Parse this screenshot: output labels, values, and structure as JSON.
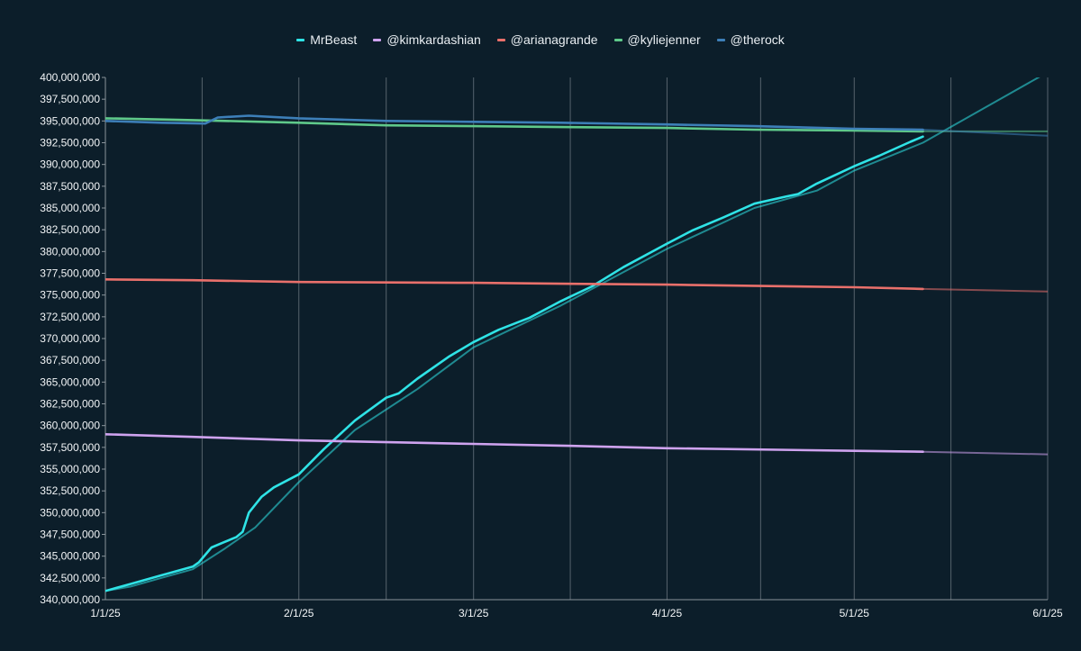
{
  "chart_data": {
    "type": "line",
    "title": "",
    "xlabel": "",
    "ylabel": "",
    "x_ticks": [
      "1/1/25",
      "2/1/25",
      "3/1/25",
      "4/1/25",
      "5/1/25",
      "6/1/25"
    ],
    "x_range": [
      "2025-01-01",
      "2025-06-01"
    ],
    "y_range": [
      340000000,
      400000000
    ],
    "y_ticks": [
      "340,000,000",
      "342,500,000",
      "345,000,000",
      "347,500,000",
      "350,000,000",
      "352,500,000",
      "355,000,000",
      "357,500,000",
      "360,000,000",
      "362,500,000",
      "365,000,000",
      "367,500,000",
      "370,000,000",
      "372,500,000",
      "375,000,000",
      "377,500,000",
      "380,000,000",
      "382,500,000",
      "385,000,000",
      "387,500,000",
      "390,000,000",
      "392,500,000",
      "395,000,000",
      "397,500,000",
      "400,000,000"
    ],
    "grid": "vertical gridlines at each date tick and between ticks",
    "legend": {
      "position": "top-center"
    },
    "series": [
      {
        "name": "MrBeast",
        "color": "#2fe3e6",
        "points": [
          [
            "2025-01-01",
            341000000
          ],
          [
            "2025-01-05",
            341800000
          ],
          [
            "2025-01-10",
            342800000
          ],
          [
            "2025-01-15",
            343800000
          ],
          [
            "2025-01-16",
            344300000
          ],
          [
            "2025-01-18",
            346000000
          ],
          [
            "2025-01-20",
            346600000
          ],
          [
            "2025-01-22",
            347200000
          ],
          [
            "2025-01-23",
            347800000
          ],
          [
            "2025-01-24",
            350000000
          ],
          [
            "2025-01-26",
            351800000
          ],
          [
            "2025-01-28",
            352900000
          ],
          [
            "2025-02-01",
            354400000
          ],
          [
            "2025-02-05",
            357300000
          ],
          [
            "2025-02-10",
            360600000
          ],
          [
            "2025-02-15",
            363200000
          ],
          [
            "2025-02-17",
            363700000
          ],
          [
            "2025-02-20",
            365400000
          ],
          [
            "2025-02-25",
            367900000
          ],
          [
            "2025-03-01",
            369600000
          ],
          [
            "2025-03-05",
            371000000
          ],
          [
            "2025-03-10",
            372400000
          ],
          [
            "2025-03-15",
            374300000
          ],
          [
            "2025-03-20",
            376000000
          ],
          [
            "2025-03-25",
            378200000
          ],
          [
            "2025-04-01",
            380900000
          ],
          [
            "2025-04-05",
            382400000
          ],
          [
            "2025-04-10",
            383900000
          ],
          [
            "2025-04-15",
            385500000
          ],
          [
            "2025-04-20",
            386300000
          ],
          [
            "2025-04-22",
            386600000
          ],
          [
            "2025-04-25",
            387800000
          ],
          [
            "2025-05-01",
            389800000
          ],
          [
            "2025-05-05",
            391000000
          ],
          [
            "2025-05-10",
            392600000
          ],
          [
            "2025-05-12",
            393200000
          ]
        ],
        "trend": [
          [
            "2025-01-01",
            341000000
          ],
          [
            "2025-01-05",
            341500000
          ],
          [
            "2025-01-10",
            342500000
          ],
          [
            "2025-01-15",
            343500000
          ],
          [
            "2025-01-20",
            345800000
          ],
          [
            "2025-01-25",
            348300000
          ],
          [
            "2025-02-01",
            353500000
          ],
          [
            "2025-02-10",
            359500000
          ],
          [
            "2025-02-20",
            364200000
          ],
          [
            "2025-03-01",
            369000000
          ],
          [
            "2025-03-15",
            373800000
          ],
          [
            "2025-04-01",
            380300000
          ],
          [
            "2025-04-15",
            385000000
          ],
          [
            "2025-04-25",
            387000000
          ],
          [
            "2025-05-01",
            389300000
          ],
          [
            "2025-05-12",
            392500000
          ],
          [
            "2025-06-01",
            400600000
          ]
        ]
      },
      {
        "name": "@kimkardashian",
        "color": "#cfa3ef",
        "points": [
          [
            "2025-01-01",
            359000000
          ],
          [
            "2025-01-15",
            358700000
          ],
          [
            "2025-02-01",
            358300000
          ],
          [
            "2025-03-01",
            357900000
          ],
          [
            "2025-03-15",
            357700000
          ],
          [
            "2025-04-01",
            357400000
          ],
          [
            "2025-05-01",
            357100000
          ],
          [
            "2025-05-12",
            357000000
          ]
        ],
        "trend": [
          [
            "2025-05-12",
            357000000
          ],
          [
            "2025-06-01",
            356700000
          ]
        ]
      },
      {
        "name": "@arianagrande",
        "color": "#e9706b",
        "points": [
          [
            "2025-01-01",
            376800000
          ],
          [
            "2025-01-15",
            376700000
          ],
          [
            "2025-02-01",
            376500000
          ],
          [
            "2025-03-01",
            376400000
          ],
          [
            "2025-03-15",
            376300000
          ],
          [
            "2025-04-01",
            376200000
          ],
          [
            "2025-05-01",
            375900000
          ],
          [
            "2025-05-12",
            375700000
          ]
        ],
        "trend": [
          [
            "2025-05-12",
            375700000
          ],
          [
            "2025-06-01",
            375400000
          ]
        ]
      },
      {
        "name": "@kyliejenner",
        "color": "#5fc98a",
        "points": [
          [
            "2025-01-01",
            395300000
          ],
          [
            "2025-01-15",
            395100000
          ],
          [
            "2025-02-01",
            394800000
          ],
          [
            "2025-02-15",
            394500000
          ],
          [
            "2025-03-01",
            394400000
          ],
          [
            "2025-03-15",
            394300000
          ],
          [
            "2025-04-01",
            394200000
          ],
          [
            "2025-04-15",
            394000000
          ],
          [
            "2025-05-01",
            393900000
          ],
          [
            "2025-05-12",
            393800000
          ]
        ],
        "trend": [
          [
            "2025-05-12",
            393800000
          ],
          [
            "2025-06-01",
            393800000
          ]
        ]
      },
      {
        "name": "@therock",
        "color": "#3d7fb8",
        "points": [
          [
            "2025-01-01",
            395000000
          ],
          [
            "2025-01-10",
            394800000
          ],
          [
            "2025-01-17",
            394700000
          ],
          [
            "2025-01-19",
            395400000
          ],
          [
            "2025-01-24",
            395600000
          ],
          [
            "2025-02-01",
            395300000
          ],
          [
            "2025-02-15",
            395000000
          ],
          [
            "2025-03-01",
            394900000
          ],
          [
            "2025-03-15",
            394800000
          ],
          [
            "2025-04-01",
            394600000
          ],
          [
            "2025-04-15",
            394400000
          ],
          [
            "2025-05-01",
            394100000
          ],
          [
            "2025-05-12",
            394000000
          ]
        ],
        "trend": [
          [
            "2025-05-12",
            394000000
          ],
          [
            "2025-06-01",
            393300000
          ]
        ]
      }
    ]
  }
}
